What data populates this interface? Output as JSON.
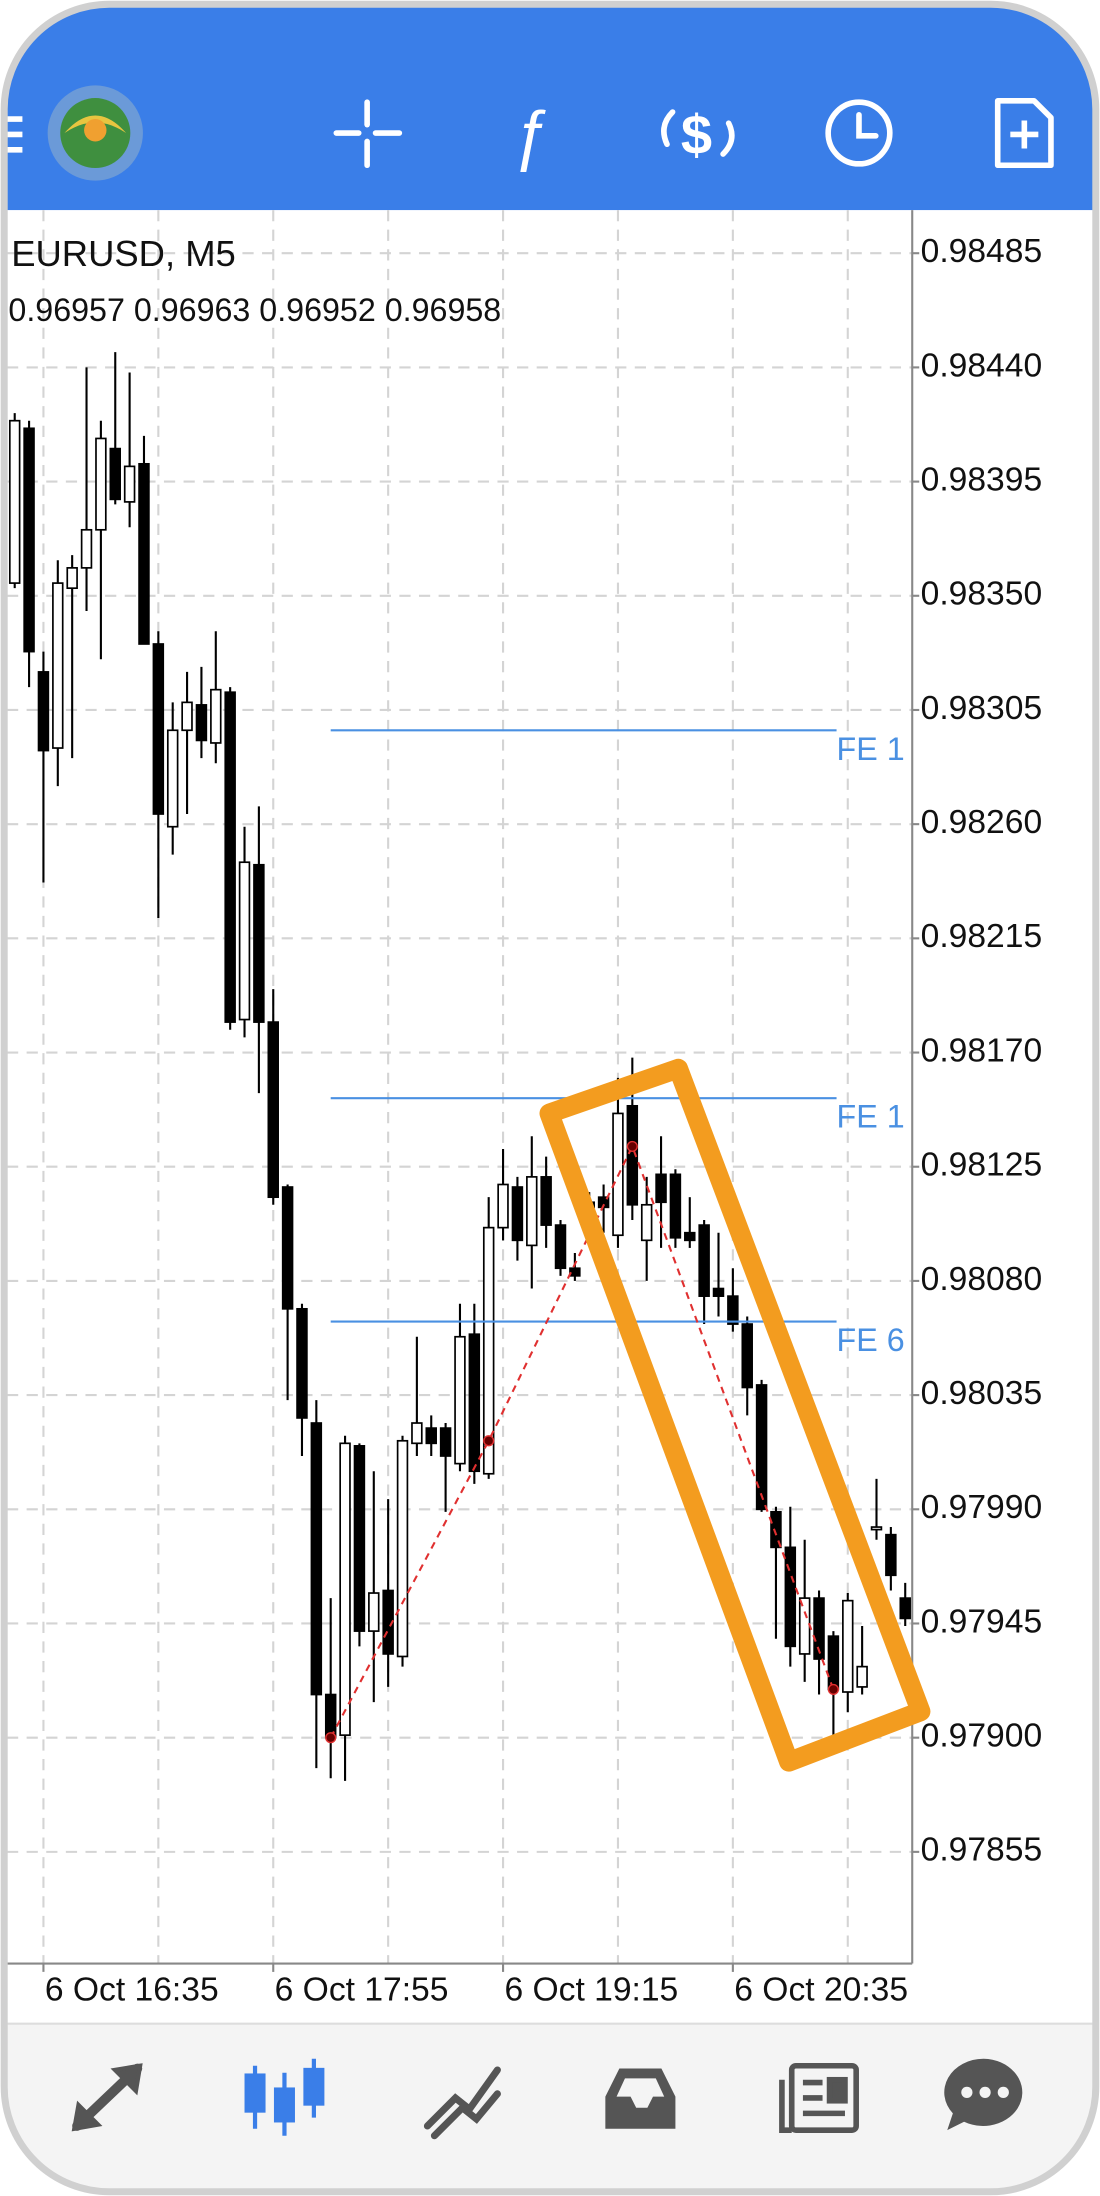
{
  "chart_data": {
    "type": "candlestick",
    "title": "EURUSD, M5",
    "subtitle": "0.96957 0.96963 0.96952 0.96958",
    "categories": [
      null,
      null,
      "6 Oct 16:35",
      null,
      null,
      null,
      null,
      null,
      null,
      null,
      null,
      null,
      null,
      null,
      null,
      null,
      null,
      null,
      "6 Oct 17:55",
      null,
      null,
      null,
      null,
      null,
      null,
      null,
      null,
      null,
      null,
      null,
      null,
      null,
      null,
      null,
      "6 Oct 19:15",
      null,
      null,
      null,
      null,
      null,
      null,
      null,
      null,
      null,
      null,
      null,
      null,
      null,
      null,
      null,
      "6 Oct 20:35",
      null,
      null,
      null,
      null,
      null,
      null,
      null,
      null,
      null,
      null,
      null,
      null
    ],
    "open": [
      0.98355,
      0.98416,
      0.9832,
      0.9829,
      0.98353,
      0.98361,
      0.98376,
      0.98408,
      0.98387,
      0.98402,
      0.98331,
      0.98259,
      0.98297,
      0.98307,
      0.98292,
      0.98312,
      0.98183,
      0.98244,
      0.98182,
      0.98117,
      0.98069,
      0.98024,
      0.97917,
      0.97901,
      0.98015,
      0.97942,
      0.97958,
      0.97932,
      0.98016,
      0.98022,
      0.98022,
      0.98008,
      0.98059,
      0.98004,
      0.98101,
      0.98117,
      0.98094,
      0.98121,
      0.98102,
      0.98085,
      0.98111,
      0.98113,
      0.98098,
      0.98149,
      0.98096,
      0.98122,
      0.98122,
      0.98099,
      0.98102,
      0.98077,
      0.98074,
      0.98063,
      0.98039,
      0.97989,
      0.97975,
      0.97933,
      0.97955,
      0.9794,
      0.97918,
      0.9792,
      0.97982,
      0.9798,
      0.97955
    ],
    "high": [
      0.98422,
      0.98419,
      0.98328,
      0.98364,
      0.98366,
      0.9844,
      0.98419,
      0.98446,
      0.98438,
      0.98413,
      0.98336,
      0.98308,
      0.9832,
      0.98322,
      0.98336,
      0.98314,
      0.98259,
      0.98267,
      0.98195,
      0.98118,
      0.98071,
      0.98033,
      0.97955,
      0.98019,
      0.98016,
      0.98005,
      0.97994,
      0.98019,
      0.98058,
      0.98027,
      0.98024,
      0.98071,
      0.98071,
      0.98113,
      0.98132,
      0.98121,
      0.98137,
      0.98129,
      0.98104,
      0.98091,
      0.98115,
      0.98118,
      0.9816,
      0.98168,
      0.98121,
      0.98137,
      0.98124,
      0.98113,
      0.98104,
      0.98099,
      0.98085,
      0.98066,
      0.98041,
      0.97991,
      0.97991,
      0.97978,
      0.97958,
      0.97942,
      0.97957,
      0.97944,
      0.98002,
      0.97983,
      0.97961
    ],
    "low": [
      0.98353,
      0.98314,
      0.98237,
      0.98275,
      0.98286,
      0.98344,
      0.98325,
      0.98386,
      0.98377,
      0.98331,
      0.98223,
      0.98248,
      0.98264,
      0.98286,
      0.98284,
      0.98179,
      0.98176,
      0.98154,
      0.9811,
      0.98033,
      0.98011,
      0.97888,
      0.97884,
      0.97883,
      0.97936,
      0.97914,
      0.9792,
      0.97928,
      0.98011,
      0.98011,
      0.97989,
      0.98005,
      0.98,
      0.98002,
      0.98096,
      0.98088,
      0.98077,
      0.98093,
      0.98082,
      0.9808,
      0.98104,
      0.98099,
      0.98093,
      0.98104,
      0.9808,
      0.98093,
      0.98093,
      0.98093,
      0.98063,
      0.98066,
      0.9806,
      0.98027,
      0.97989,
      0.97939,
      0.97928,
      0.97922,
      0.97917,
      0.979,
      0.9791,
      0.97917,
      0.97978,
      0.97958,
      0.97944
    ],
    "close": [
      0.98419,
      0.98328,
      0.98289,
      0.98355,
      0.98361,
      0.98376,
      0.98412,
      0.98388,
      0.98401,
      0.98331,
      0.98264,
      0.98297,
      0.98308,
      0.98293,
      0.98313,
      0.98182,
      0.98245,
      0.98182,
      0.98113,
      0.98069,
      0.98026,
      0.97917,
      0.979,
      0.98016,
      0.97942,
      0.97957,
      0.97933,
      0.98017,
      0.98024,
      0.98016,
      0.98011,
      0.98058,
      0.98005,
      0.98101,
      0.98118,
      0.98096,
      0.98121,
      0.98102,
      0.98085,
      0.98082,
      0.98109,
      0.98109,
      0.98146,
      0.9811,
      0.9811,
      0.98111,
      0.98097,
      0.98096,
      0.98074,
      0.98074,
      0.98063,
      0.98038,
      0.9799,
      0.97975,
      0.97936,
      0.97955,
      0.97931,
      0.97919,
      0.97954,
      0.97928,
      0.97983,
      0.97964,
      0.97947
    ],
    "up_color": "#ffffff",
    "down_color": "#000000",
    "ylim": [
      0.97811,
      0.98502
    ],
    "yticks": [
      0.97855,
      {
        "value": 0.979,
        "label": "0.97900"
      },
      0.97945,
      {
        "value": 0.9799,
        "label": "0.97990"
      },
      0.98035,
      {
        "value": 0.9808,
        "label": "0.98080"
      },
      0.98125,
      {
        "value": 0.9817,
        "label": "0.98170"
      },
      0.98215,
      {
        "value": 0.9826,
        "label": "0.98260"
      },
      0.98305,
      {
        "value": 0.9835,
        "label": "0.98350"
      },
      0.98395,
      {
        "value": 0.9844,
        "label": "0.98440"
      },
      0.98485
    ],
    "grid": true,
    "expansion": {
      "x": [
        22,
        33,
        43,
        57
      ],
      "values": [
        0.979,
        0.98017,
        0.98133,
        0.97919
      ],
      "color": "#e03030"
    },
    "fibo_levels": [
      {
        "label": "FE 1",
        "value": 0.98297
      },
      {
        "label": "FE 1",
        "value": 0.98152
      },
      {
        "label": "FE 6",
        "value": 0.98064
      }
    ],
    "fibo_color": "#4a90e2"
  }
}
